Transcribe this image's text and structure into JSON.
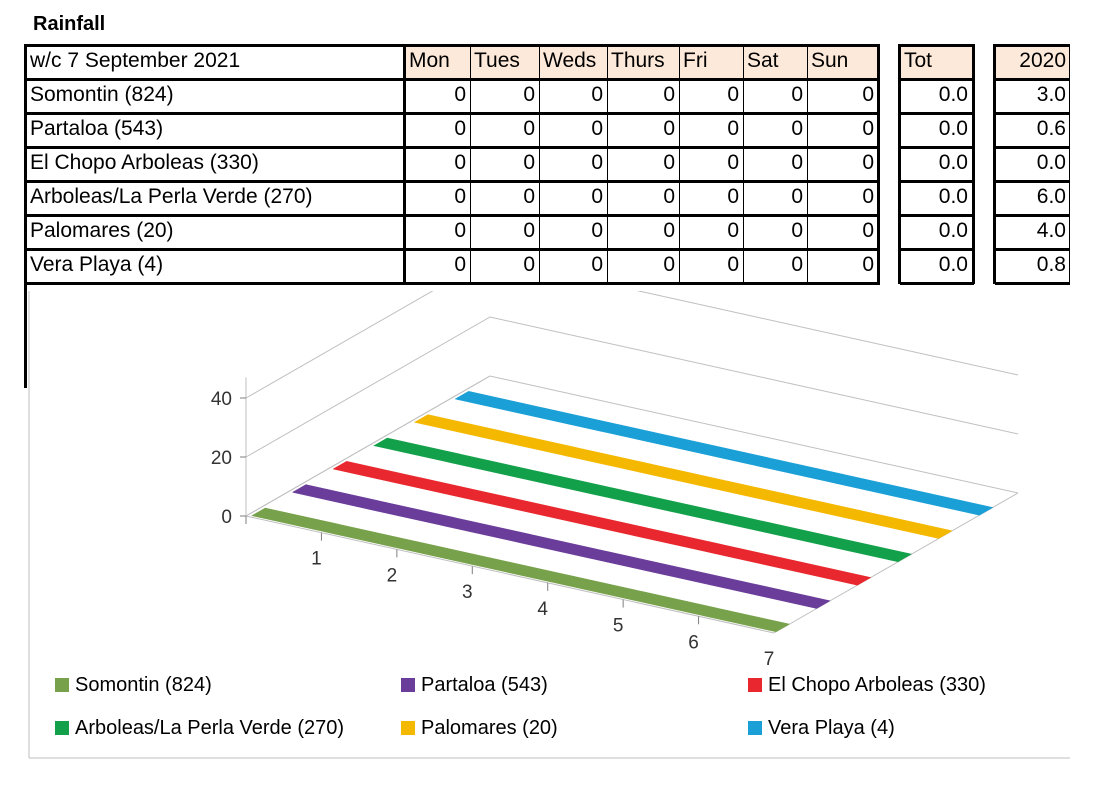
{
  "title": "Rainfall",
  "table": {
    "week_label": "w/c  7 September 2021",
    "days": [
      "Mon",
      "Tues",
      "Weds",
      "Thurs",
      "Fri",
      "Sat",
      "Sun"
    ],
    "total_label": "Tot",
    "prev_year_label": "2020",
    "rows": [
      {
        "location": "Somontin (824)",
        "days": [
          "0",
          "0",
          "0",
          "0",
          "0",
          "0",
          "0"
        ],
        "total": "0.0",
        "prev": "3.0"
      },
      {
        "location": "Partaloa (543)",
        "days": [
          "0",
          "0",
          "0",
          "0",
          "0",
          "0",
          "0"
        ],
        "total": "0.0",
        "prev": "0.6"
      },
      {
        "location": "El Chopo Arboleas (330)",
        "days": [
          "0",
          "0",
          "0",
          "0",
          "0",
          "0",
          "0"
        ],
        "total": "0.0",
        "prev": "0.0"
      },
      {
        "location": "Arboleas/La Perla Verde (270)",
        "days": [
          "0",
          "0",
          "0",
          "0",
          "0",
          "0",
          "0"
        ],
        "total": "0.0",
        "prev": "6.0"
      },
      {
        "location": "Palomares (20)",
        "days": [
          "0",
          "0",
          "0",
          "0",
          "0",
          "0",
          "0"
        ],
        "total": "0.0",
        "prev": "4.0"
      },
      {
        "location": "Vera Playa (4)",
        "days": [
          "0",
          "0",
          "0",
          "0",
          "0",
          "0",
          "0"
        ],
        "total": "0.0",
        "prev": "0.8"
      }
    ]
  },
  "chart_data": {
    "type": "bar",
    "projection": "3d",
    "categories": [
      "1",
      "2",
      "3",
      "4",
      "5",
      "6",
      "7"
    ],
    "series": [
      {
        "name": "Somontin (824)",
        "color": "#77a14a",
        "values": [
          0,
          0,
          0,
          0,
          0,
          0,
          0
        ]
      },
      {
        "name": "Partaloa (543)",
        "color": "#6a3d9a",
        "values": [
          0,
          0,
          0,
          0,
          0,
          0,
          0
        ]
      },
      {
        "name": "El Chopo Arboleas (330)",
        "color": "#e8282e",
        "values": [
          0,
          0,
          0,
          0,
          0,
          0,
          0
        ]
      },
      {
        "name": "Arboleas/La Perla Verde (270)",
        "color": "#13a04a",
        "values": [
          0,
          0,
          0,
          0,
          0,
          0,
          0
        ]
      },
      {
        "name": "Palomares (20)",
        "color": "#f5b800",
        "values": [
          0,
          0,
          0,
          0,
          0,
          0,
          0
        ]
      },
      {
        "name": "Vera Playa (4)",
        "color": "#1a9fd6",
        "values": [
          0,
          0,
          0,
          0,
          0,
          0,
          0
        ]
      }
    ],
    "yticks": [
      "0",
      "20",
      "40"
    ],
    "ylim": [
      0,
      40
    ],
    "grid": true,
    "legend_position": "bottom"
  }
}
